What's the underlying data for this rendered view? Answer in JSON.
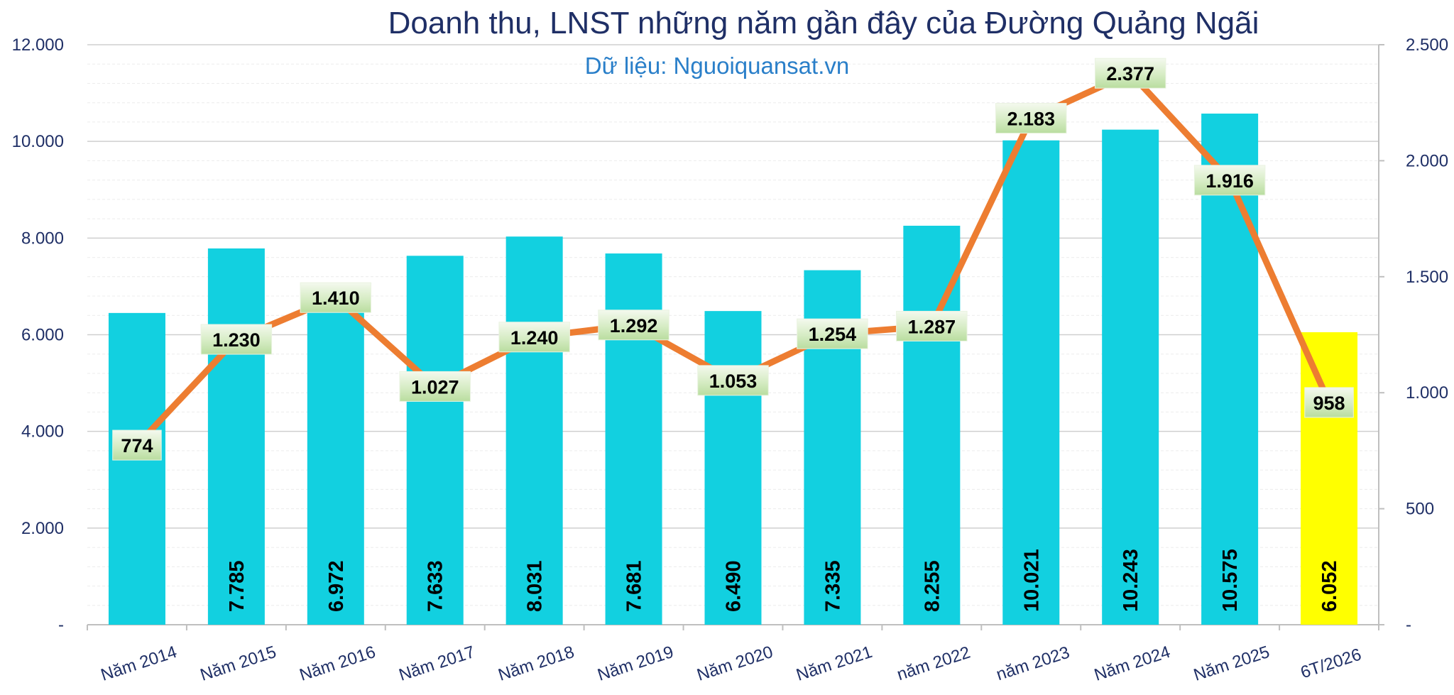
{
  "chart_data": {
    "type": "bar",
    "title": "Doanh thu, LNST những năm gần đây của Đường Quảng Ngãi",
    "subtitle": "Dữ liệu: Nguoiquansat.vn",
    "categories": [
      "Năm 2014",
      "Năm 2015",
      "Năm 2016",
      "Năm 2017",
      "Năm 2018",
      "Năm 2019",
      "Năm 2020",
      "Năm 2021",
      "năm 2022",
      "năm 2023",
      "Năm 2024",
      "Năm 2025",
      "6T/2026"
    ],
    "series": [
      {
        "type": "bar",
        "axis": "left",
        "values": [
          6450,
          7785,
          6972,
          7633,
          8031,
          7681,
          6490,
          7335,
          8255,
          10021,
          10243,
          10575,
          6052
        ],
        "labels": [
          "",
          "7.785",
          "6.972",
          "7.633",
          "8.031",
          "7.681",
          "6.490",
          "7.335",
          "8.255",
          "10.021",
          "10.243",
          "10.575",
          "6.052"
        ],
        "color": "#12d0e0",
        "highlight_index": 12,
        "highlight_color": "#ffff00"
      },
      {
        "type": "line",
        "axis": "right",
        "values": [
          774,
          1230,
          1410,
          1027,
          1240,
          1292,
          1053,
          1254,
          1287,
          2183,
          2377,
          1916,
          958
        ],
        "labels": [
          "774",
          "1.230",
          "1.410",
          "1.027",
          "1.240",
          "1.292",
          "1.053",
          "1.254",
          "1.287",
          "2.183",
          "2.377",
          "1.916",
          "958"
        ],
        "color": "#ed7d31"
      }
    ],
    "y_left": {
      "min": 0,
      "max": 12000,
      "ticks": [
        0,
        2000,
        4000,
        6000,
        8000,
        10000,
        12000
      ],
      "tick_labels": [
        "-",
        "2.000",
        "4.000",
        "6.000",
        "8.000",
        "10.000",
        "12.000"
      ]
    },
    "y_right": {
      "min": 0,
      "max": 2500,
      "ticks": [
        0,
        500,
        1000,
        1500,
        2000,
        2500
      ],
      "tick_labels": [
        "-",
        "500",
        "1.000",
        "1.500",
        "2.000",
        "2.500"
      ]
    },
    "grid": true
  }
}
